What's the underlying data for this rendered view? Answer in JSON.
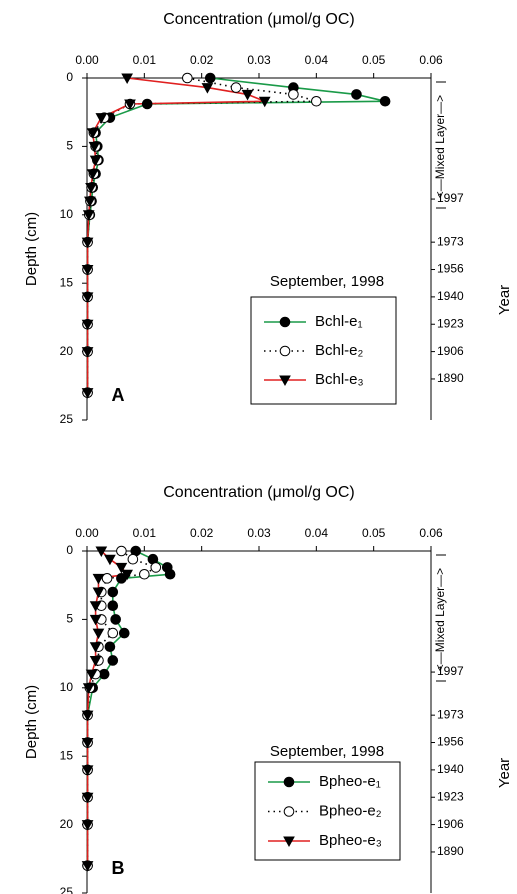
{
  "chart_data": [
    {
      "type": "line",
      "title": "Concentration (μmol/g OC)",
      "ylabel": "Depth (cm)",
      "y2label": "Year",
      "annotation": "<—Mixed Layer—>",
      "legend_title": "September, 1998",
      "panel_label": "A",
      "xlim": [
        0,
        0.06
      ],
      "xticks": [
        {
          "value": 0,
          "label": "0.00"
        },
        0.01,
        0.02,
        0.03,
        0.04,
        0.05,
        0.06
      ],
      "ylim": [
        0,
        25
      ],
      "yticks": [
        0,
        5,
        10,
        15,
        20,
        25
      ],
      "y2lim": [
        0,
        25
      ],
      "y2ticks": [
        {
          "value": 8.85,
          "label": "1997"
        },
        {
          "value": 12,
          "label": "1973"
        },
        {
          "value": 14,
          "label": "1956"
        },
        {
          "value": 16,
          "label": "1940"
        },
        {
          "value": 18,
          "label": "1923"
        },
        {
          "value": 20,
          "label": "1906"
        },
        {
          "value": 22,
          "label": "1890"
        }
      ],
      "depth": [
        0,
        0.7,
        1.2,
        1.7,
        1.9,
        2.9,
        4,
        5,
        6,
        7,
        8,
        9,
        10,
        12,
        14,
        16,
        18,
        20,
        23
      ],
      "series": [
        {
          "name": "Bchl-e₁",
          "color": "#1a9a48",
          "marker": "filled",
          "dash": "solid",
          "values": [
            0.0215,
            0.036,
            0.047,
            0.052,
            0.0105,
            0.004,
            0.0015,
            0.0018,
            0.002,
            0.0015,
            0.001,
            0.0008,
            0.0005,
            0.0001,
            0.0001,
            0.0001,
            0.0001,
            0.0001,
            0.0001
          ]
        },
        {
          "name": "Bchl-e₂",
          "color": "#000000",
          "marker": "open",
          "dash": "dotted",
          "values": [
            0.0175,
            0.026,
            0.036,
            0.04,
            0.0075,
            0.003,
            0.0012,
            0.0015,
            0.0018,
            0.0012,
            0.0008,
            0.0006,
            0.0004,
            0.0001,
            0.0001,
            0.0001,
            0.0001,
            0.0001,
            0.0001
          ]
        },
        {
          "name": "Bchl-e₃",
          "color": "#e02020",
          "marker": "triangle",
          "dash": "solid",
          "values": [
            0.007,
            0.021,
            0.028,
            0.031,
            0.0075,
            0.0025,
            0.001,
            0.0013,
            0.0015,
            0.001,
            0.0007,
            0.0005,
            0.0003,
            0.0001,
            0.0001,
            0.0001,
            0.0001,
            0.0001,
            0.0001
          ]
        }
      ]
    },
    {
      "type": "line",
      "title": "Concentration (μmol/g OC)",
      "ylabel": "Depth (cm)",
      "y2label": "Year",
      "annotation": "<—Mixed Layer—>",
      "legend_title": "September, 1998",
      "panel_label": "B",
      "xlim": [
        0,
        0.06
      ],
      "xticks": [
        {
          "value": 0,
          "label": "0.00"
        },
        0.01,
        0.02,
        0.03,
        0.04,
        0.05,
        0.06
      ],
      "ylim": [
        0,
        25
      ],
      "yticks": [
        0,
        5,
        10,
        15,
        20,
        25
      ],
      "y2lim": [
        0,
        25
      ],
      "y2ticks": [
        {
          "value": 8.85,
          "label": "1997"
        },
        {
          "value": 12,
          "label": "1973"
        },
        {
          "value": 14,
          "label": "1956"
        },
        {
          "value": 16,
          "label": "1940"
        },
        {
          "value": 18,
          "label": "1923"
        },
        {
          "value": 20,
          "label": "1906"
        },
        {
          "value": 22,
          "label": "1890"
        }
      ],
      "depth": [
        0,
        0.6,
        1.2,
        1.7,
        2,
        3,
        4,
        5,
        6,
        7,
        8,
        9,
        10,
        12,
        14,
        16,
        18,
        20,
        23
      ],
      "series": [
        {
          "name": "Bpheo-e₁",
          "color": "#1a9a48",
          "marker": "filled",
          "dash": "solid",
          "values": [
            0.0085,
            0.0115,
            0.014,
            0.0145,
            0.006,
            0.0045,
            0.0045,
            0.005,
            0.0065,
            0.004,
            0.0045,
            0.003,
            0.001,
            0.0001,
            0.0001,
            0.0001,
            0.0001,
            0.0001,
            0.0001
          ]
        },
        {
          "name": "Bpheo-e₂",
          "color": "#000000",
          "marker": "open",
          "dash": "dotted",
          "values": [
            0.006,
            0.008,
            0.012,
            0.01,
            0.0035,
            0.0025,
            0.0025,
            0.0025,
            0.0045,
            0.002,
            0.002,
            0.0015,
            0.0005,
            0.0001,
            0.0001,
            0.0001,
            0.0001,
            0.0001,
            0.0001
          ]
        },
        {
          "name": "Bpheo-e₃",
          "color": "#e02020",
          "marker": "triangle",
          "dash": "solid",
          "values": [
            0.0025,
            0.004,
            0.006,
            0.007,
            0.002,
            0.002,
            0.0015,
            0.0015,
            0.002,
            0.0015,
            0.0015,
            0.0008,
            0.0003,
            0.0001,
            0.0001,
            0.0001,
            0.0001,
            0.0001,
            0.0001
          ]
        }
      ]
    }
  ]
}
